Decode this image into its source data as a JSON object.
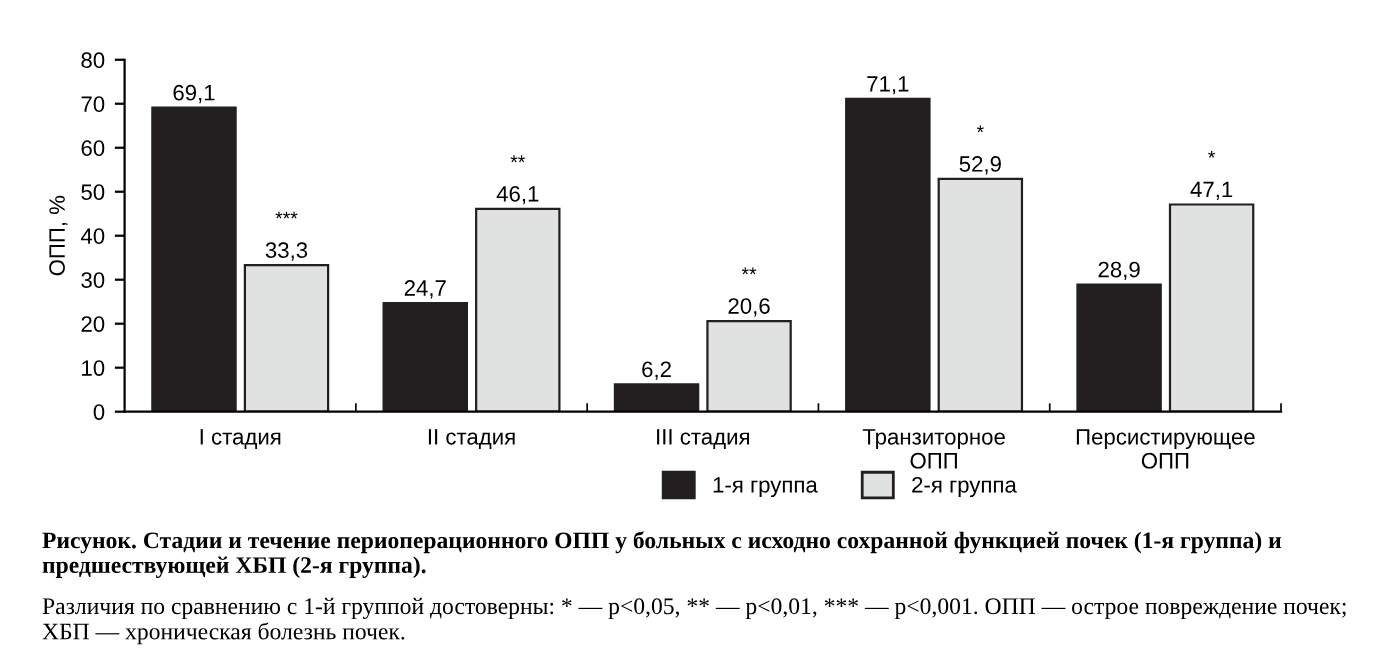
{
  "chart_data": {
    "type": "bar",
    "title": "Рисунок. Стадии и течение периоперационного ОПП у больных с исходно сохранной функцией почек (1-я группа) и предшествующей ХБП (2-я группа).",
    "subtitle": "Различия по сравнению с 1-й группой достоверны: * — p<0,05, ** — p<0,01, *** — p<0,001. ОПП — острое повреждение почек; ХБП — хроническая болезнь почек.",
    "ylabel": "ОПП, %",
    "categories": [
      "I стадия",
      "II стадия",
      "III стадия",
      "Транзиторное\nОПП",
      "Персистирующее\nОПП"
    ],
    "series": [
      {
        "name": "1-я группа",
        "color": "#231f20",
        "values": [
          69.1,
          24.7,
          6.2,
          71.1,
          28.9
        ],
        "value_labels": [
          "69,1",
          "24,7",
          "6,2",
          "71,1",
          "28,9"
        ]
      },
      {
        "name": "2-я группа",
        "color": "#e0e1e1",
        "values": [
          33.3,
          46.1,
          20.6,
          52.9,
          47.1
        ],
        "value_labels": [
          "33,3",
          "46,1",
          "20,6",
          "52,9",
          "47,1"
        ]
      }
    ],
    "annotations": [
      "***",
      "**",
      "**",
      "*",
      "*"
    ],
    "ylim": [
      0,
      80
    ],
    "yticks": [
      0,
      10,
      20,
      30,
      40,
      50,
      60,
      70,
      80
    ],
    "grid": false,
    "legend": "bottom"
  }
}
